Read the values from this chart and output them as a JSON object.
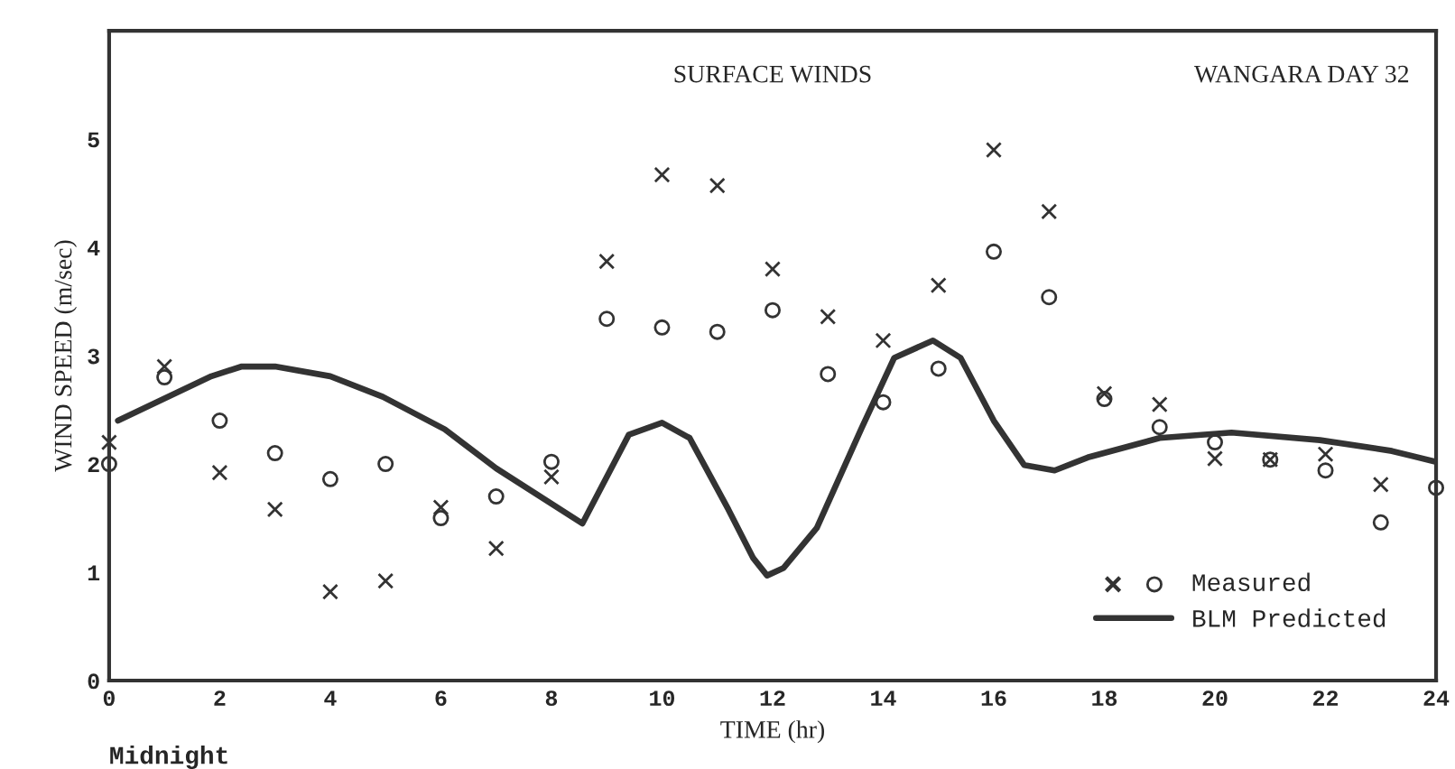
{
  "chart_data": {
    "type": "scatter",
    "title": "SURFACE WINDS",
    "subtitle": "WANGARA DAY 32",
    "xlabel": "TIME (hr)",
    "ylabel": "WIND SPEED (m/sec)",
    "annotations": [
      "Midnight"
    ],
    "xlim": [
      0,
      24
    ],
    "ylim": [
      0,
      6
    ],
    "xticks": [
      0,
      2,
      4,
      6,
      8,
      10,
      12,
      14,
      16,
      18,
      20,
      22,
      24
    ],
    "yticks": [
      0,
      1,
      2,
      3,
      4,
      5
    ],
    "grid": false,
    "legend": "bottom right",
    "series": [
      {
        "name": "Measured",
        "marker": "cross",
        "color": "#333333",
        "x": [
          0,
          1,
          2,
          3,
          4,
          5,
          6,
          7,
          8,
          9,
          10,
          11,
          12,
          13,
          14,
          15,
          16,
          17,
          18,
          19,
          20,
          21,
          22,
          23
        ],
        "values": [
          2.2,
          2.9,
          1.92,
          1.58,
          0.82,
          0.92,
          1.6,
          1.22,
          1.88,
          3.87,
          4.67,
          4.57,
          3.8,
          3.36,
          3.14,
          3.65,
          4.9,
          4.33,
          2.65,
          2.55,
          2.05,
          2.04,
          2.09,
          1.81
        ]
      },
      {
        "marker": "circle",
        "color": "#333333",
        "x": [
          0,
          1,
          2,
          3,
          4,
          5,
          6,
          7,
          8,
          9,
          10,
          11,
          12,
          13,
          14,
          15,
          16,
          17,
          18,
          19,
          20,
          21,
          22,
          23,
          24
        ],
        "values": [
          2.0,
          2.8,
          2.4,
          2.1,
          1.86,
          2.0,
          1.5,
          1.7,
          2.02,
          3.34,
          3.26,
          3.22,
          3.42,
          2.83,
          2.57,
          2.88,
          3.96,
          3.54,
          2.6,
          2.34,
          2.2,
          2.04,
          1.94,
          1.46,
          1.78
        ]
      },
      {
        "name": "BLM Predicted",
        "type": "line",
        "marker": "none",
        "line_style": "solid",
        "color": "#333333",
        "x": [
          0.16,
          1.85,
          2.4,
          3.0,
          4.0,
          4.95,
          6.07,
          7.0,
          8.56,
          9.4,
          10.0,
          10.5,
          11.2,
          11.65,
          11.9,
          12.2,
          12.8,
          13.6,
          14.2,
          14.9,
          15.4,
          16.0,
          16.55,
          17.1,
          17.7,
          19.0,
          20.3,
          21.9,
          23.2,
          24.0
        ],
        "values": [
          2.4,
          2.81,
          2.9,
          2.9,
          2.81,
          2.62,
          2.32,
          1.96,
          1.45,
          2.27,
          2.38,
          2.24,
          1.58,
          1.13,
          0.97,
          1.04,
          1.41,
          2.32,
          2.98,
          3.14,
          2.98,
          2.4,
          1.99,
          1.94,
          2.06,
          2.24,
          2.29,
          2.22,
          2.12,
          2.02
        ]
      }
    ]
  }
}
